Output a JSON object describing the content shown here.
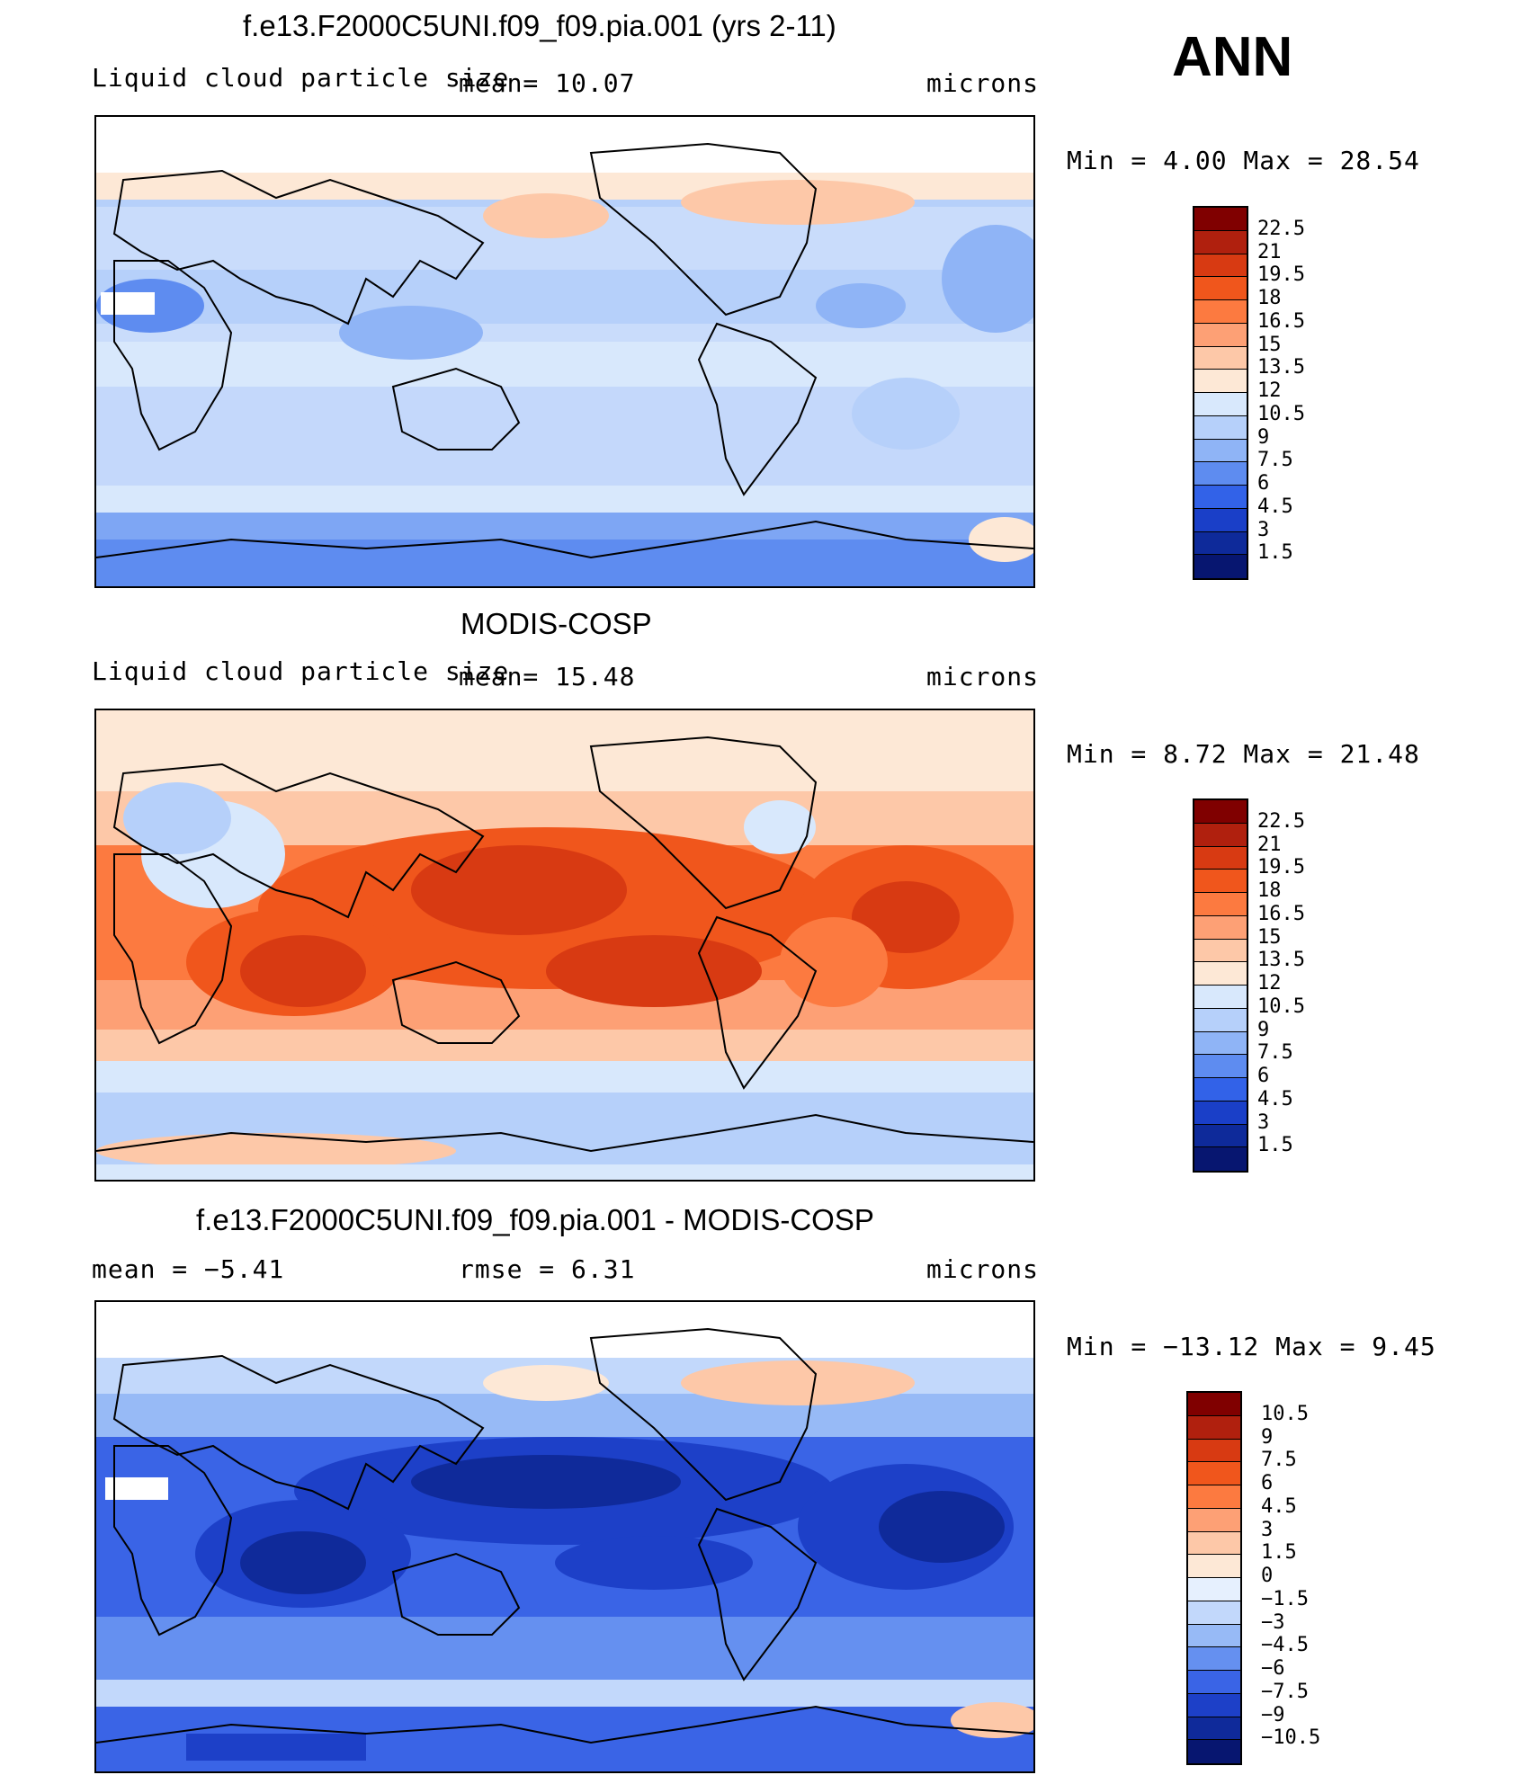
{
  "season": "ANN",
  "panels": [
    {
      "title": "f.e13.F2000C5UNI.f09_f09.pia.001 (yrs 2-11)",
      "variable": "Liquid cloud particle size",
      "stat_left": "mean=   10.07",
      "units": "microns",
      "minmax": "Min =   4.00 Max =   28.54",
      "levels": [
        "22.5",
        "21",
        "19.5",
        "18",
        "16.5",
        "15",
        "13.5",
        "12",
        "10.5",
        "9",
        "7.5",
        "6",
        "4.5",
        "3",
        "1.5"
      ],
      "palette": "abs"
    },
    {
      "title": "MODIS-COSP",
      "variable": "Liquid cloud particle size",
      "stat_left": "mean=   15.48",
      "units": "microns",
      "minmax": "Min =   8.72 Max =   21.48",
      "levels": [
        "22.5",
        "21",
        "19.5",
        "18",
        "16.5",
        "15",
        "13.5",
        "12",
        "10.5",
        "9",
        "7.5",
        "6",
        "4.5",
        "3",
        "1.5"
      ],
      "palette": "abs"
    },
    {
      "title": "f.e13.F2000C5UNI.f09_f09.pia.001 - MODIS-COSP",
      "stat_left": "mean =   −5.41",
      "stat_mid": "rmse =    6.31",
      "units": "microns",
      "minmax": "Min = −13.12 Max =    9.45",
      "levels": [
        "10.5",
        "9",
        "7.5",
        "6",
        "4.5",
        "3",
        "1.5",
        "0",
        "−1.5",
        "−3",
        "−4.5",
        "−6",
        "−7.5",
        "−9",
        "−10.5"
      ],
      "palette": "diff"
    }
  ],
  "colors": {
    "abs": [
      "#800000",
      "#b0200e",
      "#d83a12",
      "#f0561c",
      "#fc7a40",
      "#fda075",
      "#fdc8a8",
      "#fde8d6",
      "#d8e8fc",
      "#b6d0fa",
      "#8fb4f6",
      "#5e8cf0",
      "#3262e8",
      "#1a3fc8",
      "#0e2a9a",
      "#071670"
    ],
    "diff": [
      "#800000",
      "#b0200e",
      "#d83a12",
      "#f0561c",
      "#fc7a40",
      "#fda075",
      "#fdc8a8",
      "#fde8d6",
      "#e6f0fe",
      "#c2d8fb",
      "#97baf6",
      "#6590f0",
      "#3a64e6",
      "#1d40c8",
      "#0f2a9a",
      "#071670"
    ]
  }
}
